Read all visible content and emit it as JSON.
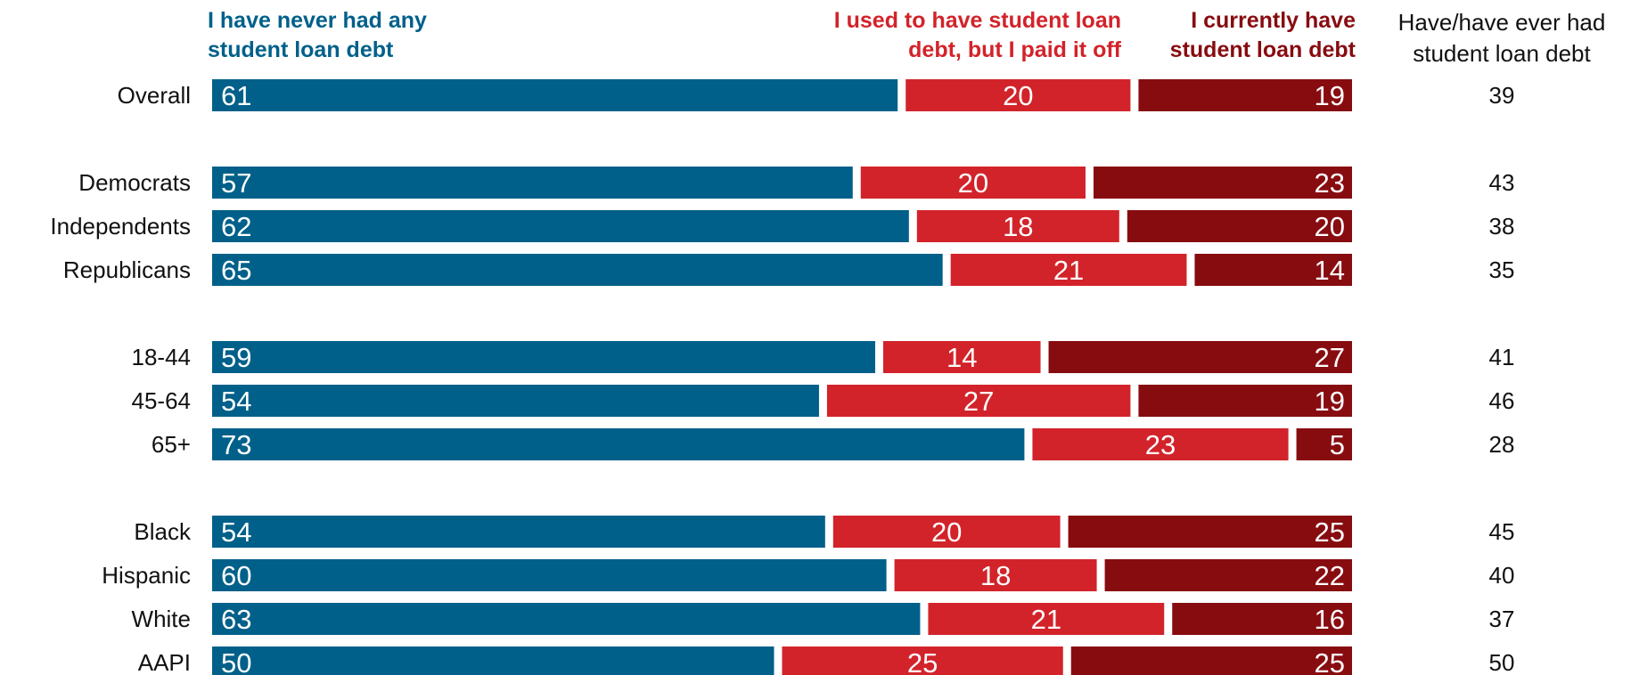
{
  "chart_data": {
    "type": "bar",
    "orientation": "horizontal",
    "stacked": true,
    "normalized": true,
    "legend_position": "top",
    "grid": false,
    "series": [
      {
        "name": "I have never had any student loan debt",
        "color": "#00608a",
        "values": [
          61,
          57,
          62,
          65,
          59,
          54,
          73,
          54,
          60,
          63,
          50
        ]
      },
      {
        "name": "I used to have student loan debt, but I paid it off",
        "color": "#d2232a",
        "values": [
          20,
          20,
          18,
          21,
          14,
          27,
          23,
          20,
          18,
          21,
          25
        ]
      },
      {
        "name": "I currently have student loan debt",
        "color": "#870c10",
        "values": [
          19,
          23,
          20,
          14,
          27,
          19,
          5,
          25,
          22,
          16,
          25
        ]
      }
    ],
    "categories": [
      "Overall",
      "Democrats",
      "Independents",
      "Republicans",
      "18-44",
      "45-64",
      "65+",
      "Black",
      "Hispanic",
      "White",
      "AAPI"
    ],
    "groups": [
      [
        "Overall"
      ],
      [
        "Democrats",
        "Independents",
        "Republicans"
      ],
      [
        "18-44",
        "45-64",
        "65+"
      ],
      [
        "Black",
        "Hispanic",
        "White",
        "AAPI"
      ]
    ],
    "total_column": {
      "header": [
        "Have/have ever had",
        "student loan debt"
      ],
      "values": [
        39,
        43,
        38,
        35,
        41,
        46,
        28,
        45,
        40,
        37,
        50
      ]
    },
    "legend_labels": [
      {
        "lines": [
          "I have never had any",
          "student loan debt"
        ],
        "color": "#00608a",
        "align": "left"
      },
      {
        "lines": [
          "I used to have student loan",
          "debt, but I paid it off"
        ],
        "color": "#d2232a",
        "align": "right"
      },
      {
        "lines": [
          "I currently have",
          "student loan debt"
        ],
        "color": "#870c10",
        "align": "right"
      }
    ]
  }
}
